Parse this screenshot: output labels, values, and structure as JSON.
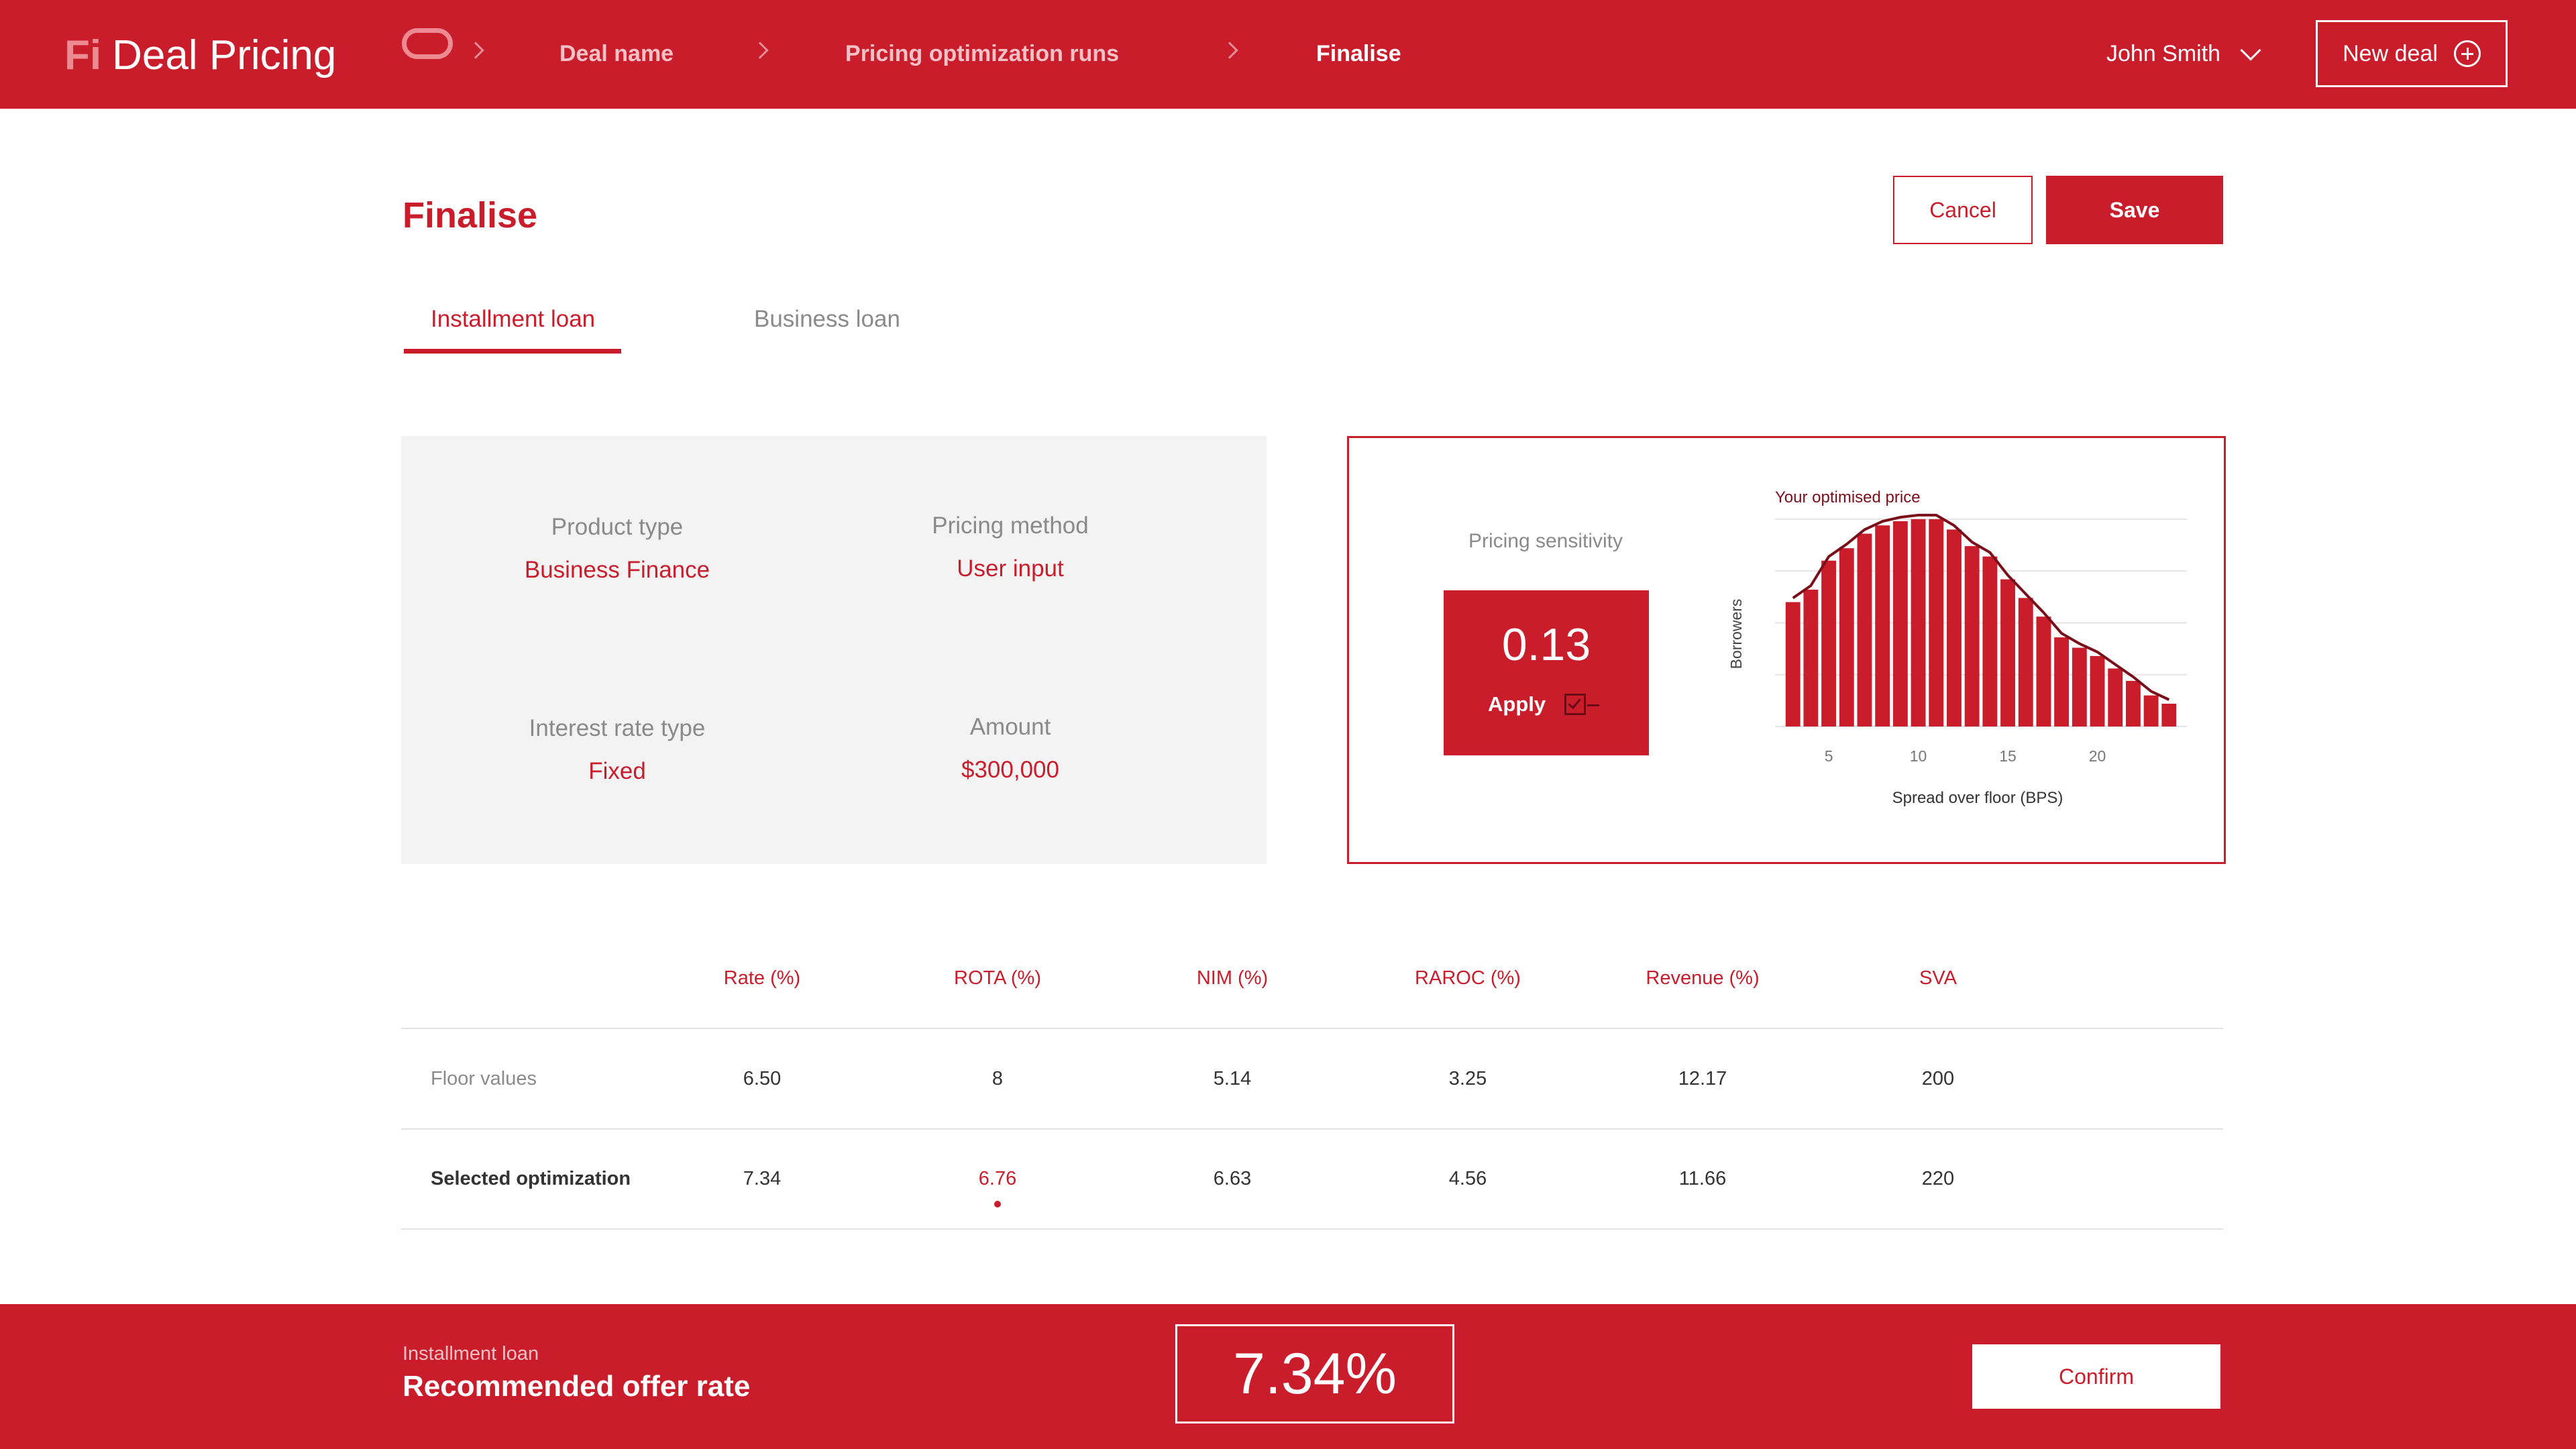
{
  "header": {
    "logo_mark": "Fi",
    "app_title": "Deal Pricing",
    "breadcrumbs": [
      "Deal name",
      "Pricing optimization runs",
      "Finalise"
    ],
    "user_name": "John Smith",
    "new_deal_label": "New deal"
  },
  "page": {
    "title": "Finalise",
    "cancel_label": "Cancel",
    "save_label": "Save"
  },
  "tabs": [
    {
      "label": "Installment loan",
      "active": true
    },
    {
      "label": "Business loan",
      "active": false
    }
  ],
  "info": {
    "product_type_label": "Product type",
    "product_type_value": "Business Finance",
    "pricing_method_label": "Pricing method",
    "pricing_method_value": "User input",
    "interest_rate_type_label": "Interest rate type",
    "interest_rate_type_value": "Fixed",
    "amount_label": "Amount",
    "amount_value": "$300,000"
  },
  "sensitivity": {
    "label": "Pricing sensitivity",
    "value": "0.13",
    "apply_label": "Apply"
  },
  "chart_data": {
    "type": "bar",
    "annotation": "Your optimised price",
    "xlabel": "Spread over floor (BPS)",
    "ylabel": "Borrowers",
    "x": [
      3,
      4,
      5,
      6,
      7,
      8,
      9,
      10,
      11,
      12,
      13,
      14,
      15,
      16,
      17,
      18,
      19,
      20,
      21,
      22,
      23,
      24
    ],
    "values": [
      60,
      66,
      80,
      86,
      93,
      97,
      99,
      100,
      100,
      95,
      87,
      82,
      71,
      62,
      53,
      43,
      38,
      34,
      28,
      22,
      15,
      11
    ],
    "xticks": [
      5,
      10,
      15,
      20
    ],
    "xlim": [
      2,
      25
    ],
    "ylim": [
      0,
      110
    ],
    "colors": {
      "bar": "#c91d2c",
      "curve": "#7a0f1a",
      "grid": "#e4e4e4"
    }
  },
  "table": {
    "headers": [
      "Rate (%)",
      "ROTA (%)",
      "NIM (%)",
      "RAROC (%)",
      "Revenue (%)",
      "SVA"
    ],
    "rows": [
      {
        "label": "Floor values",
        "values": [
          "6.50",
          "8",
          "5.14",
          "3.25",
          "12.17",
          "200"
        ]
      },
      {
        "label": "Selected optimization",
        "values": [
          "7.34",
          "6.76",
          "6.63",
          "4.56",
          "11.66",
          "220"
        ]
      }
    ]
  },
  "footer": {
    "subtitle": "Installment loan",
    "title": "Recommended offer rate",
    "rate": "7.34%",
    "confirm_label": "Confirm"
  },
  "colors": {
    "brand": "#c91d2c",
    "muted_text": "#8a8a8a",
    "panel_bg": "#f3f3f3"
  }
}
